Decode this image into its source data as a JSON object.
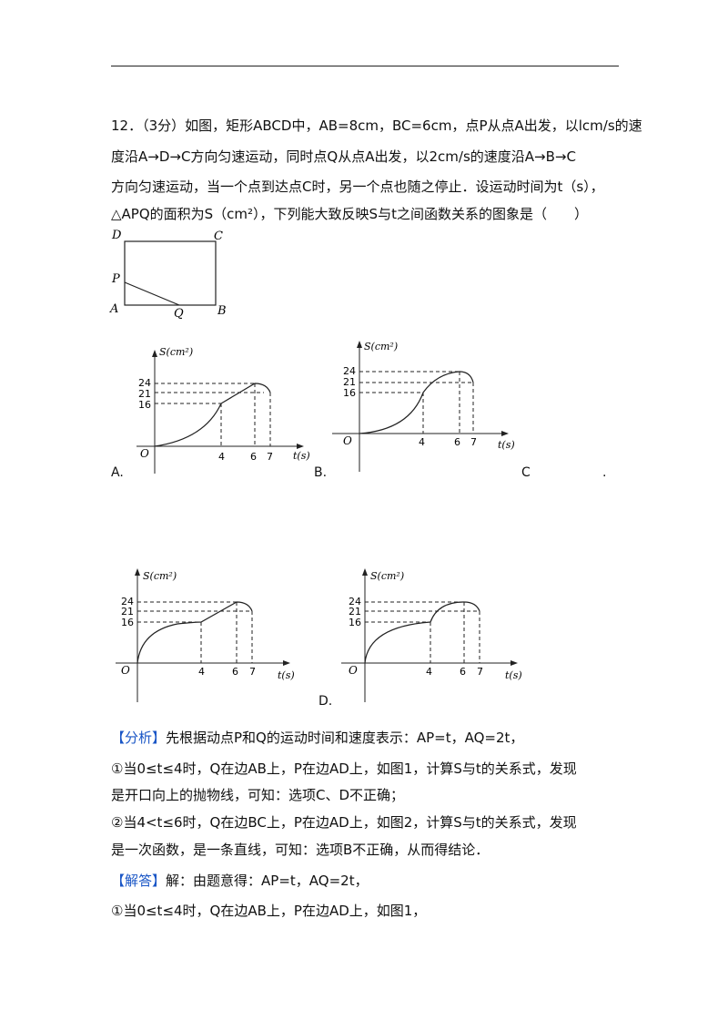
{
  "question": {
    "lines": [
      "12．（3分）如图，矩形ABCD中，AB=8cm，BC=6cm，点P从点A出发，以lcm/s的速",
      "度沿A→D→C方向匀速运动，同时点Q从点A出发，以2cm/s的速度沿A→B→C",
      "方向匀速运动，当一个点到达点C时，另一个点也随之停止．设运动时间为t（s），",
      "△APQ的面积为S（cm²），下列能大致反映S与t之间函数关系的图象是（　　）"
    ]
  },
  "figure": {
    "D": "D",
    "C": "C",
    "P": "P",
    "A": "A",
    "Q": "Q",
    "B": "B"
  },
  "graphs": {
    "y_axis_label": "S(cm²)",
    "x_axis_label": "t(s)",
    "origin": "O",
    "y_ticks": [
      "24",
      "21",
      "16"
    ],
    "x_ticks": [
      "4",
      "6",
      "7"
    ]
  },
  "options": {
    "A": "A.",
    "B": "B.",
    "C": "C",
    "dot": ".",
    "D": "D."
  },
  "analysis": {
    "tag": "【分析】",
    "line1": "先根据动点P和Q的运动时间和速度表示：AP=t，AQ=2t，",
    "line2": "①当0≤t≤4时，Q在边AB上，P在边AD上，如图1，计算S与t的关系式，发现",
    "line3": "是开口向上的抛物线，可知：选项C、D不正确；",
    "line4": "②当4<t≤6时，Q在边BC上，P在边AD上，如图2，计算S与t的关系式，发现",
    "line5": "是一次函数，是一条直线，可知：选项B不正确，从而得结论．"
  },
  "solution": {
    "tag": "【解答】",
    "line1": "解：由题意得：AP=t，AQ=2t，",
    "line2": "①当0≤t≤4时，Q在边AB上，P在边AD上，如图1，"
  }
}
